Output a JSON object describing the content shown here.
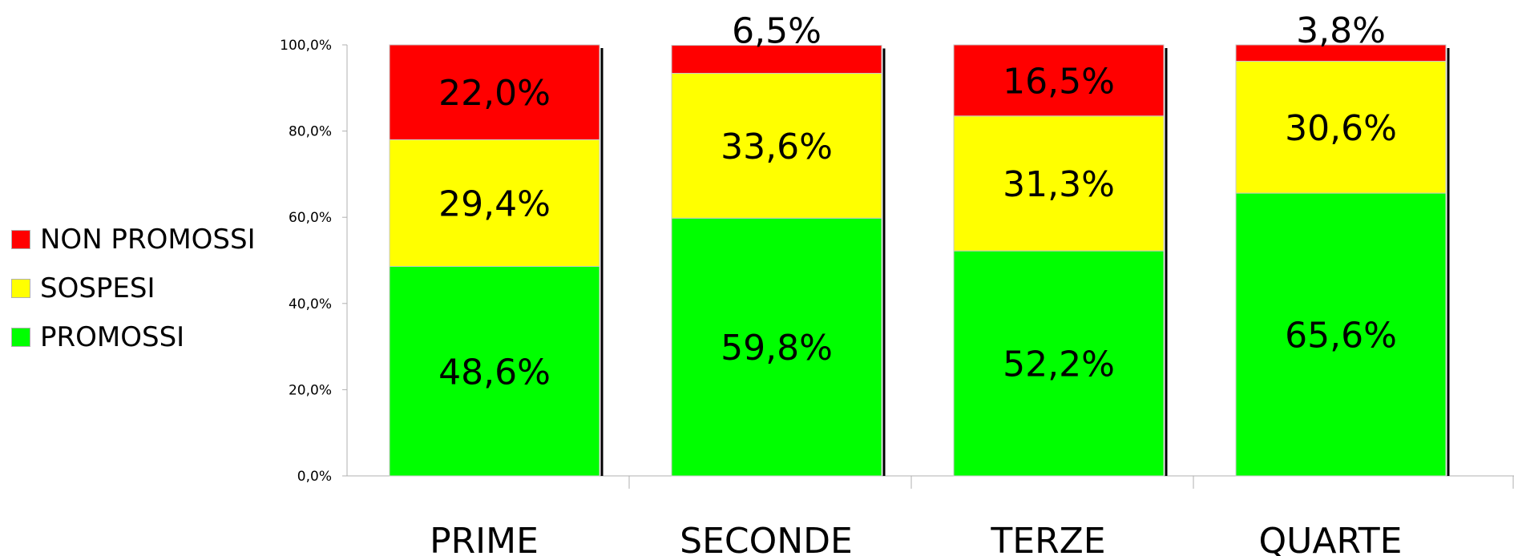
{
  "chart_data": {
    "type": "bar",
    "stacked": true,
    "categories": [
      "PRIME",
      "SECONDE",
      "TERZE",
      "QUARTE"
    ],
    "series": [
      {
        "name": "PROMOSSI",
        "values": [
          48.6,
          59.8,
          52.2,
          65.6
        ],
        "labels": [
          "48,6%",
          "59,8%",
          "52,2%",
          "65,6%"
        ],
        "color": "#00ff00"
      },
      {
        "name": "SOSPESI",
        "values": [
          29.4,
          33.6,
          31.3,
          30.6
        ],
        "labels": [
          "29,4%",
          "33,6%",
          "31,3%",
          "30,6%"
        ],
        "color": "#ffff00"
      },
      {
        "name": "NON PROMOSSI",
        "values": [
          22.0,
          6.5,
          16.5,
          3.8
        ],
        "labels": [
          "22,0%",
          "6,5%",
          "16,5%",
          "3,8%"
        ],
        "color": "#ff0000"
      }
    ],
    "legend_order": [
      "NON PROMOSSI",
      "SOSPESI",
      "PROMOSSI"
    ],
    "legend_position": "left",
    "yticks": [
      "0,0%",
      "20,0%",
      "40,0%",
      "60,0%",
      "80,0%",
      "100,0%"
    ],
    "ylim": [
      0,
      100
    ],
    "grid": false,
    "title": "",
    "xlabel": "",
    "ylabel": ""
  }
}
